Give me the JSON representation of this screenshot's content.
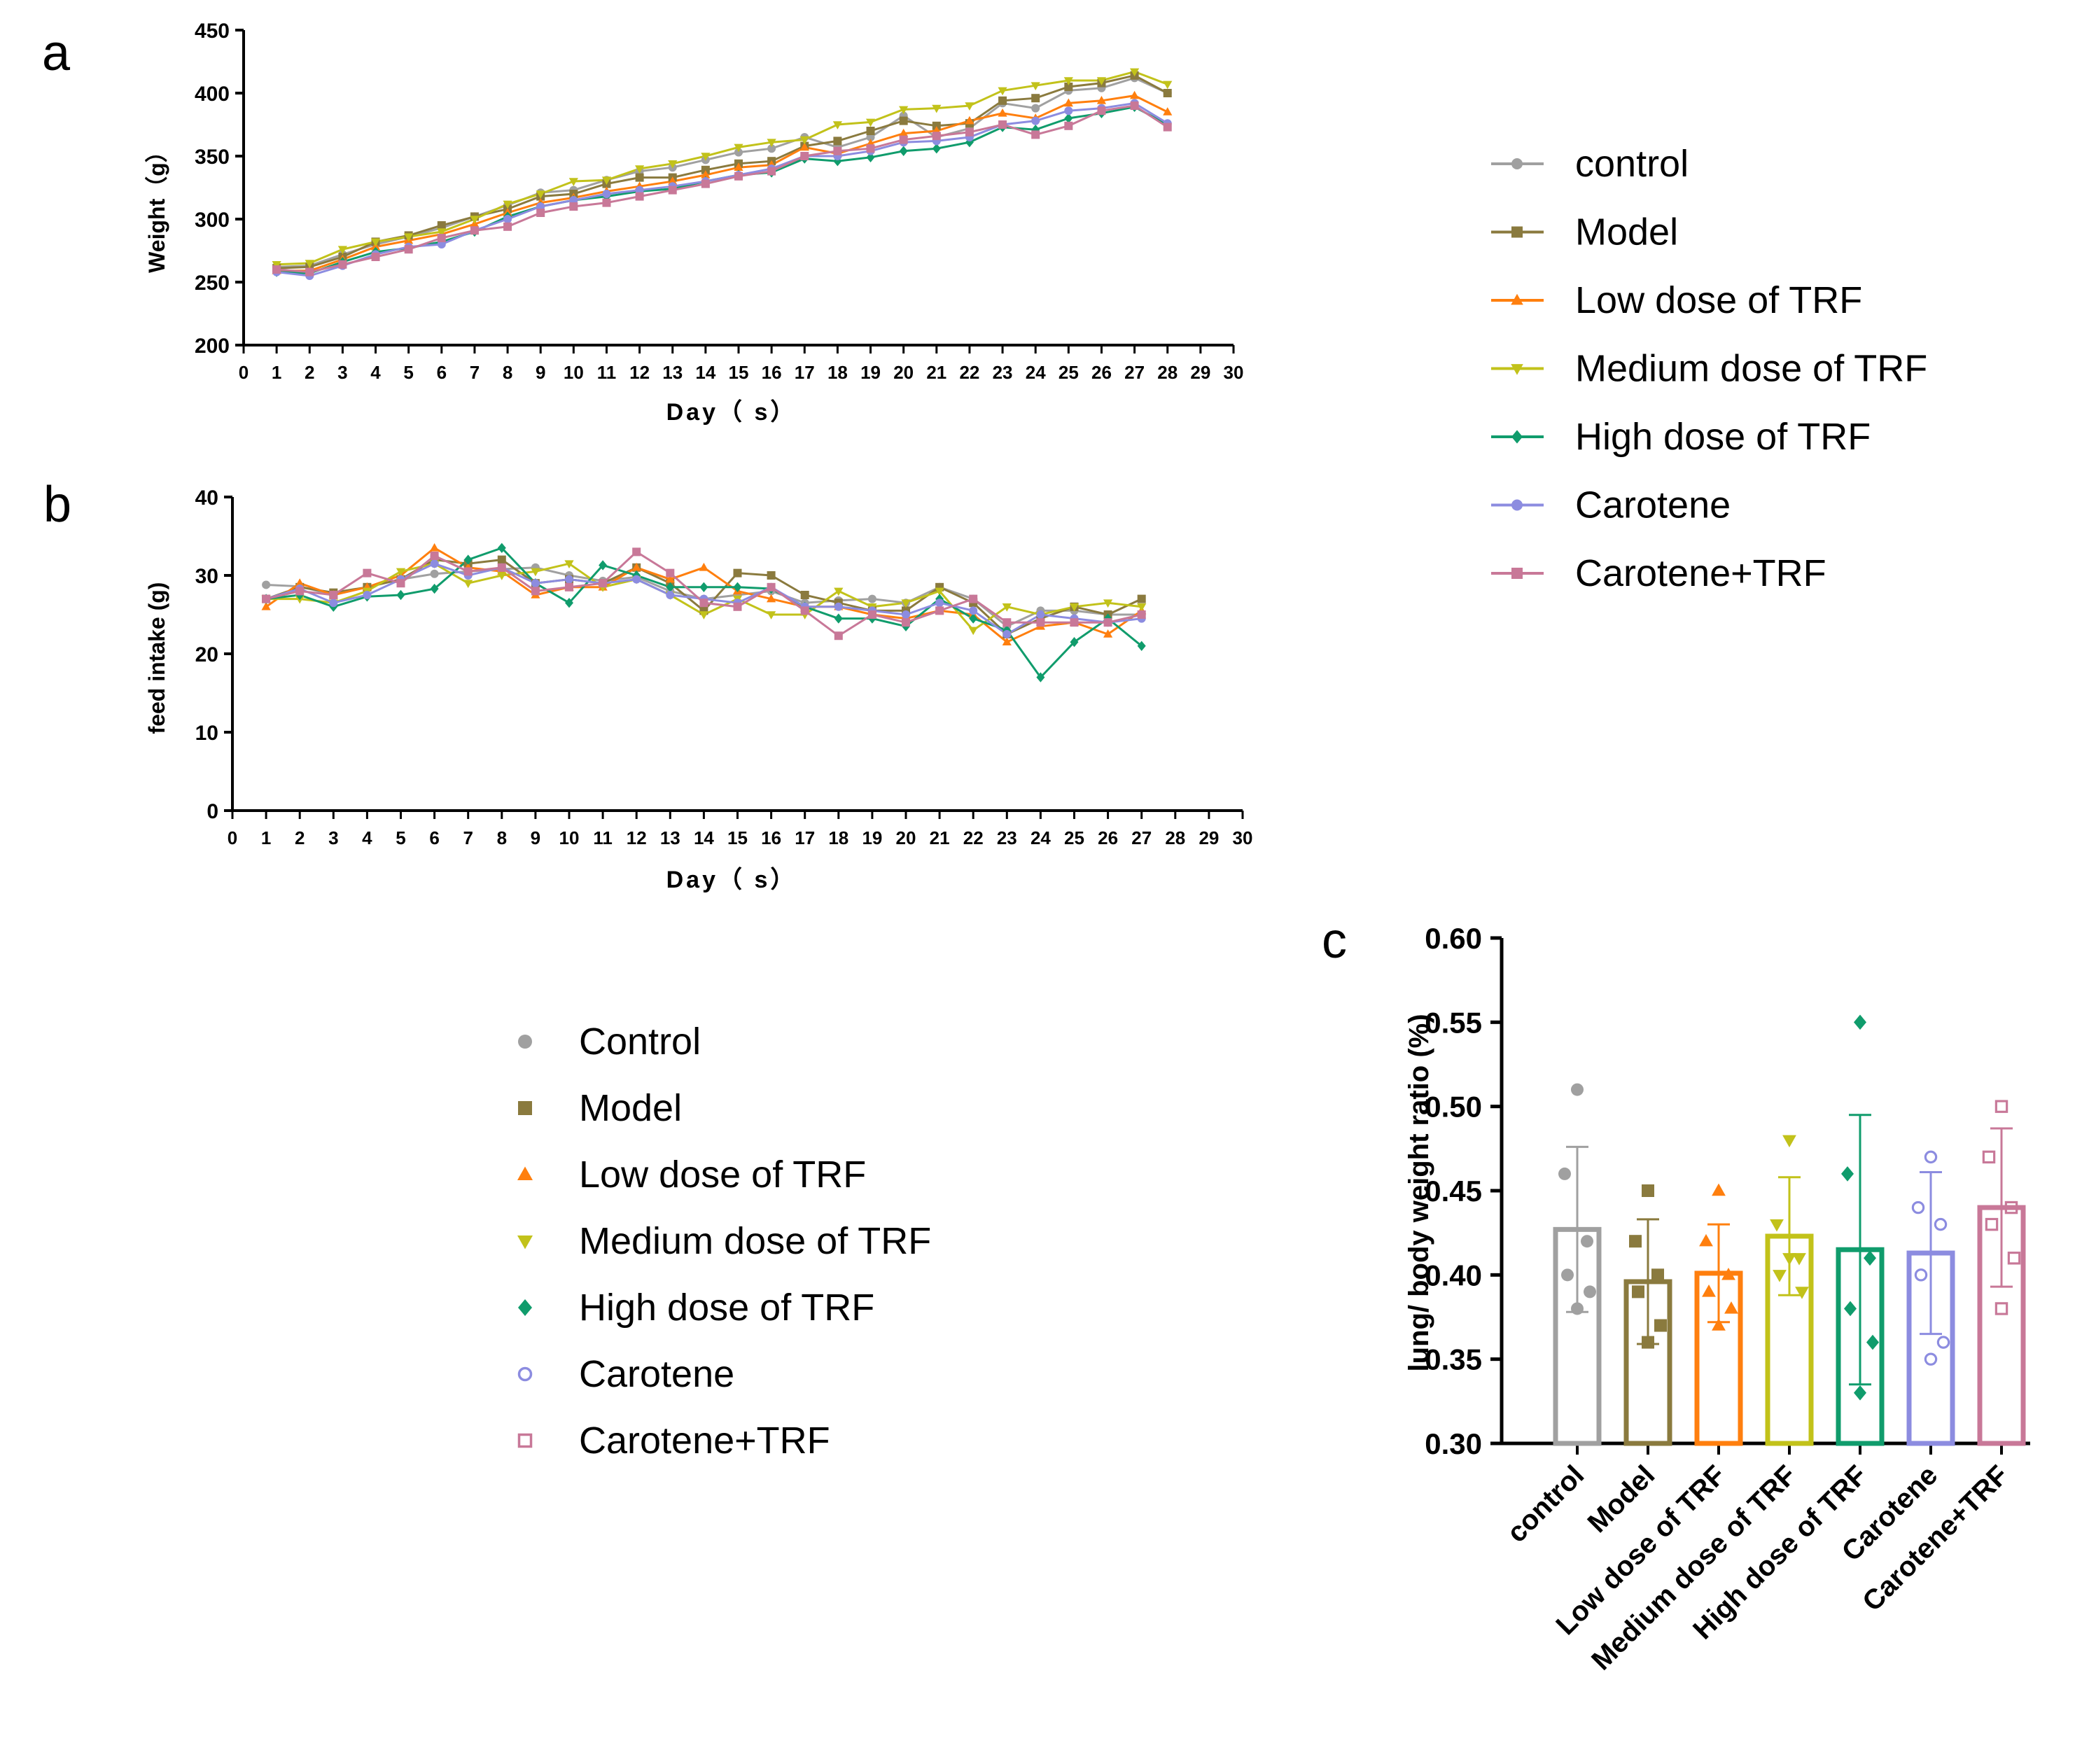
{
  "figure": {
    "panel_labels": [
      "a",
      "b",
      "c"
    ]
  },
  "legend_ab": {
    "entries": [
      "control",
      "Model",
      "Low dose of TRF",
      "Medium dose of TRF",
      "High dose of TRF",
      "Carotene",
      "Carotene+TRF"
    ]
  },
  "legend_c": {
    "entries": [
      "Control",
      "Model",
      "Low dose of TRF",
      "Medium dose of TRF",
      "High dose of TRF",
      "Carotene",
      "Carotene+TRF"
    ]
  },
  "series_styles": [
    {
      "color": "#a0a0a0",
      "marker": "circle"
    },
    {
      "color": "#8a7a3e",
      "marker": "square"
    },
    {
      "color": "#ff7f0e",
      "marker": "triangle-up"
    },
    {
      "color": "#c2c21a",
      "marker": "triangle-down"
    },
    {
      "color": "#109c6c",
      "marker": "diamond"
    },
    {
      "color": "#8c8ce0",
      "marker": "circle-open"
    },
    {
      "color": "#c87898",
      "marker": "square-open"
    }
  ],
  "chart_data": [
    {
      "panel": "a",
      "type": "line",
      "xlabel": "Day（ s）",
      "ylabel": "Weight（g）",
      "xlim": [
        0,
        30
      ],
      "ylim": [
        200,
        450
      ],
      "xticks": [
        "0",
        "1",
        "2",
        "3",
        "4",
        "5",
        "6",
        "7",
        "8",
        "9",
        "10",
        "11",
        "12",
        "13",
        "14",
        "15",
        "16",
        "17",
        "18",
        "19",
        "20",
        "21",
        "22",
        "23",
        "24",
        "25",
        "26",
        "27",
        "28",
        "29",
        "30"
      ],
      "yticks": [
        "200",
        "250",
        "300",
        "350",
        "400",
        "450"
      ],
      "x": [
        1,
        2,
        3,
        4,
        5,
        6,
        7,
        8,
        9,
        10,
        11,
        12,
        13,
        14,
        15,
        16,
        17,
        18,
        19,
        20,
        21,
        22,
        23,
        24,
        25,
        26,
        27,
        28
      ],
      "series": [
        {
          "name": "control",
          "values": [
            262,
            263,
            272,
            280,
            286,
            293,
            302,
            311,
            321,
            323,
            331,
            338,
            341,
            347,
            353,
            356,
            365,
            357,
            365,
            382,
            365,
            372,
            392,
            388,
            402,
            404,
            412,
            400
          ]
        },
        {
          "name": "Model",
          "values": [
            261,
            262,
            270,
            282,
            287,
            295,
            302,
            308,
            318,
            320,
            328,
            333,
            333,
            339,
            344,
            346,
            358,
            362,
            370,
            378,
            374,
            376,
            394,
            396,
            405,
            408,
            414,
            400
          ]
        },
        {
          "name": "Low dose of TRF",
          "values": [
            259,
            259,
            268,
            278,
            283,
            288,
            296,
            305,
            313,
            317,
            322,
            326,
            330,
            335,
            341,
            343,
            357,
            352,
            360,
            368,
            370,
            378,
            384,
            380,
            392,
            394,
            398,
            385
          ]
        },
        {
          "name": "Medium dose of TRF",
          "values": [
            264,
            265,
            276,
            282,
            286,
            290,
            300,
            312,
            320,
            330,
            331,
            340,
            344,
            350,
            357,
            361,
            363,
            375,
            377,
            387,
            388,
            390,
            402,
            406,
            410,
            410,
            417,
            407
          ]
        },
        {
          "name": "High dose of TRF",
          "values": [
            258,
            257,
            266,
            274,
            277,
            282,
            290,
            302,
            310,
            315,
            318,
            322,
            324,
            330,
            335,
            337,
            348,
            346,
            349,
            354,
            356,
            361,
            373,
            371,
            380,
            384,
            389,
            375
          ]
        },
        {
          "name": "Carotene",
          "values": [
            258,
            255,
            263,
            272,
            278,
            280,
            291,
            300,
            310,
            315,
            320,
            323,
            326,
            330,
            335,
            340,
            350,
            350,
            354,
            361,
            362,
            365,
            375,
            378,
            386,
            388,
            392,
            376
          ]
        },
        {
          "name": "Carotene+TRF",
          "values": [
            260,
            258,
            264,
            270,
            276,
            285,
            291,
            294,
            305,
            310,
            313,
            318,
            323,
            328,
            334,
            338,
            350,
            354,
            356,
            363,
            366,
            369,
            375,
            367,
            374,
            386,
            390,
            373
          ]
        }
      ]
    },
    {
      "panel": "b",
      "type": "line",
      "xlabel": "Day（ s）",
      "ylabel": "feed intake (g)",
      "xlim": [
        0,
        30
      ],
      "ylim": [
        0,
        40
      ],
      "xticks": [
        "0",
        "1",
        "2",
        "3",
        "4",
        "5",
        "6",
        "7",
        "8",
        "9",
        "10",
        "11",
        "12",
        "13",
        "14",
        "15",
        "16",
        "17",
        "18",
        "19",
        "20",
        "21",
        "22",
        "23",
        "24",
        "25",
        "26",
        "27",
        "28",
        "29",
        "30"
      ],
      "yticks": [
        "0",
        "10",
        "20",
        "30",
        "40"
      ],
      "x": [
        1,
        2,
        3,
        4,
        5,
        6,
        7,
        8,
        9,
        10,
        11,
        12,
        13,
        14,
        15,
        16,
        17,
        18,
        19,
        20,
        21,
        22,
        23,
        24,
        25,
        26,
        27
      ],
      "series": [
        {
          "name": "control",
          "values": [
            28.8,
            28.6,
            27.5,
            28.5,
            29.5,
            30.2,
            30.5,
            30.8,
            31.0,
            30.0,
            29.3,
            29.8,
            28.0,
            27.0,
            27.5,
            28.0,
            26.5,
            26.8,
            27.0,
            26.5,
            28.5,
            27.0,
            23.5,
            25.5,
            25.5,
            25.0,
            25.0
          ]
        },
        {
          "name": "Model",
          "values": [
            27.0,
            28.5,
            27.8,
            28.5,
            29.5,
            32.0,
            31.5,
            32.0,
            29.0,
            29.5,
            29.0,
            31.0,
            29.0,
            25.5,
            30.3,
            30.0,
            27.5,
            26.5,
            25.5,
            25.5,
            28.5,
            26.5,
            22.5,
            24.5,
            26.0,
            25.0,
            27.0
          ]
        },
        {
          "name": "Low dose of TRF",
          "values": [
            26.0,
            29.0,
            27.5,
            28.5,
            30.0,
            33.5,
            31.0,
            30.5,
            27.5,
            28.5,
            28.5,
            31.0,
            29.5,
            31.0,
            28.0,
            27.0,
            26.0,
            26.0,
            25.0,
            24.5,
            25.5,
            25.0,
            21.5,
            23.5,
            24.0,
            22.5,
            25.5
          ]
        },
        {
          "name": "Medium dose of TRF",
          "values": [
            27.0,
            27.0,
            26.5,
            28.0,
            30.5,
            31.5,
            29.0,
            30.0,
            30.5,
            31.5,
            28.5,
            29.5,
            27.5,
            25.0,
            27.0,
            25.0,
            25.0,
            28.0,
            26.0,
            26.5,
            28.0,
            23.0,
            26.0,
            25.0,
            26.0,
            26.5,
            26.0
          ]
        },
        {
          "name": "High dose of TRF",
          "values": [
            27.0,
            27.5,
            26.0,
            27.3,
            27.5,
            28.3,
            32.0,
            33.5,
            29.0,
            26.5,
            31.3,
            30.0,
            28.5,
            28.5,
            28.5,
            28.3,
            26.0,
            24.5,
            24.5,
            23.5,
            27.0,
            24.5,
            23.0,
            17.0,
            21.5,
            24.5,
            21.0
          ]
        },
        {
          "name": "Carotene",
          "values": [
            27.0,
            28.3,
            26.5,
            27.5,
            29.5,
            31.5,
            30.0,
            31.0,
            29.0,
            29.5,
            29.0,
            29.5,
            27.5,
            27.0,
            26.5,
            28.5,
            26.0,
            26.0,
            25.5,
            25.0,
            26.5,
            25.5,
            22.5,
            25.0,
            24.5,
            24.0,
            24.5
          ]
        },
        {
          "name": "Carotene+TRF",
          "values": [
            27.0,
            28.0,
            27.5,
            30.3,
            29.0,
            32.5,
            30.5,
            31.0,
            28.0,
            28.5,
            29.0,
            33.0,
            30.3,
            26.5,
            26.0,
            28.5,
            25.5,
            22.3,
            25.0,
            24.0,
            25.5,
            27.0,
            24.0,
            24.0,
            24.0,
            24.0,
            25.0
          ]
        }
      ]
    },
    {
      "panel": "c",
      "type": "bar",
      "ylabel": "lung/ body weight ratio (%)",
      "ylim": [
        0.3,
        0.6
      ],
      "yticks": [
        "0.30",
        "0.35",
        "0.40",
        "0.45",
        "0.50",
        "0.55",
        "0.60"
      ],
      "categories": [
        "control",
        "Model",
        "Low dose of TRF",
        "Medium dose of TRF",
        "High dose of TRF",
        "Carotene",
        "Carotene+TRF"
      ],
      "means": [
        0.427,
        0.396,
        0.401,
        0.423,
        0.415,
        0.413,
        0.44
      ],
      "sd": [
        0.049,
        0.037,
        0.029,
        0.035,
        0.08,
        0.048,
        0.047
      ],
      "points": [
        [
          0.51,
          0.46,
          0.42,
          0.4,
          0.39,
          0.38
        ],
        [
          0.45,
          0.42,
          0.4,
          0.39,
          0.37,
          0.36
        ],
        [
          0.45,
          0.42,
          0.4,
          0.39,
          0.38,
          0.37
        ],
        [
          0.48,
          0.43,
          0.41,
          0.4,
          0.39,
          0.41
        ],
        [
          0.55,
          0.46,
          0.41,
          0.38,
          0.36,
          0.33
        ],
        [
          0.47,
          0.44,
          0.43,
          0.4,
          0.36,
          0.35
        ],
        [
          0.5,
          0.47,
          0.44,
          0.43,
          0.41,
          0.38
        ]
      ]
    }
  ]
}
